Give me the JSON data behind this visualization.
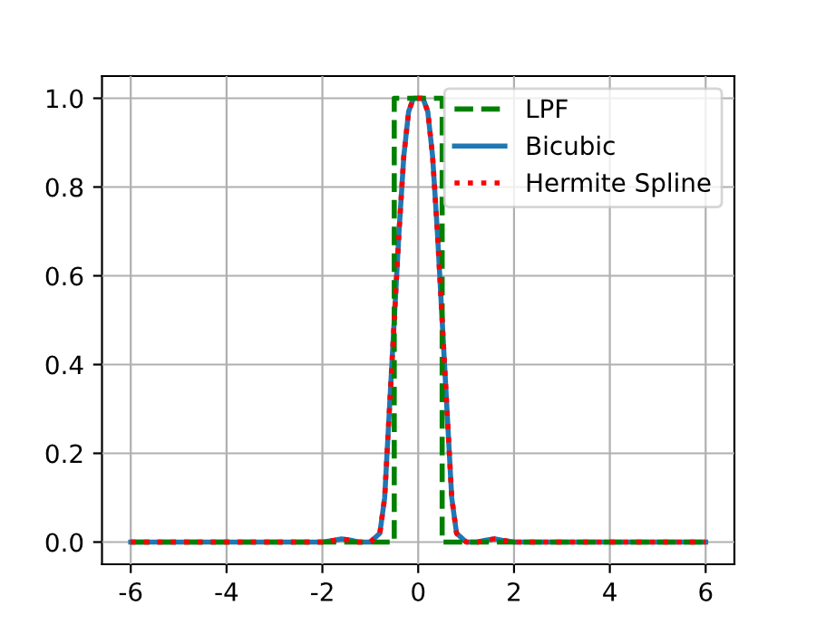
{
  "chart_data": {
    "type": "line",
    "xlim": [
      -6.6,
      6.6
    ],
    "ylim": [
      -0.05,
      1.05
    ],
    "xticks": [
      -6,
      -4,
      -2,
      0,
      2,
      4,
      6
    ],
    "yticks": [
      {
        "value": 0,
        "label": "0.0"
      },
      {
        "value": 0.2,
        "label": "0.2"
      },
      {
        "value": 0.4,
        "label": "0.4"
      },
      {
        "value": 0.6,
        "label": "0.6"
      },
      {
        "value": 0.8,
        "label": "0.8"
      },
      {
        "value": 1,
        "label": "1.0"
      }
    ],
    "grid": true,
    "legend": "top right",
    "series": [
      {
        "name": "LPF",
        "color": "#008000",
        "line_style": "dashed",
        "x": [
          -6,
          -0.5,
          -0.5,
          0.5,
          0.5,
          6
        ],
        "values": [
          0,
          0,
          1,
          1,
          0,
          0
        ]
      },
      {
        "name": "Bicubic",
        "color": "#1f77b4",
        "line_style": "solid",
        "x": [
          -6,
          -2,
          -1.75,
          -1.6,
          -1.4,
          -1.25,
          -1,
          -0.8,
          -0.7,
          -0.6,
          -0.5,
          -0.4,
          -0.3,
          -0.2,
          -0.1,
          0,
          0.1,
          0.2,
          0.3,
          0.4,
          0.5,
          0.6,
          0.7,
          0.8,
          1,
          1.25,
          1.4,
          1.6,
          1.75,
          2,
          6
        ],
        "values": [
          0,
          0,
          0.004,
          0.007,
          0.004,
          0,
          0,
          0.02,
          0.1,
          0.3,
          0.5,
          0.7,
          0.87,
          0.97,
          1,
          1,
          1,
          0.97,
          0.87,
          0.7,
          0.5,
          0.3,
          0.1,
          0.02,
          0,
          0,
          0.004,
          0.007,
          0.004,
          0,
          0
        ]
      },
      {
        "name": "Hermite Spline",
        "color": "#ff0000",
        "line_style": "dotted",
        "x": [
          -6,
          -2,
          -1.75,
          -1.6,
          -1.4,
          -1.25,
          -1,
          -0.8,
          -0.7,
          -0.6,
          -0.5,
          -0.4,
          -0.3,
          -0.2,
          -0.1,
          0,
          0.1,
          0.2,
          0.3,
          0.4,
          0.5,
          0.6,
          0.7,
          0.8,
          1,
          1.25,
          1.4,
          1.6,
          1.75,
          2,
          6
        ],
        "values": [
          0,
          0,
          0.004,
          0.007,
          0.004,
          0,
          0,
          0.02,
          0.1,
          0.3,
          0.5,
          0.7,
          0.87,
          0.97,
          1,
          1,
          1,
          0.97,
          0.87,
          0.7,
          0.5,
          0.3,
          0.1,
          0.02,
          0,
          0,
          0.004,
          0.007,
          0.004,
          0,
          0
        ]
      }
    ]
  }
}
